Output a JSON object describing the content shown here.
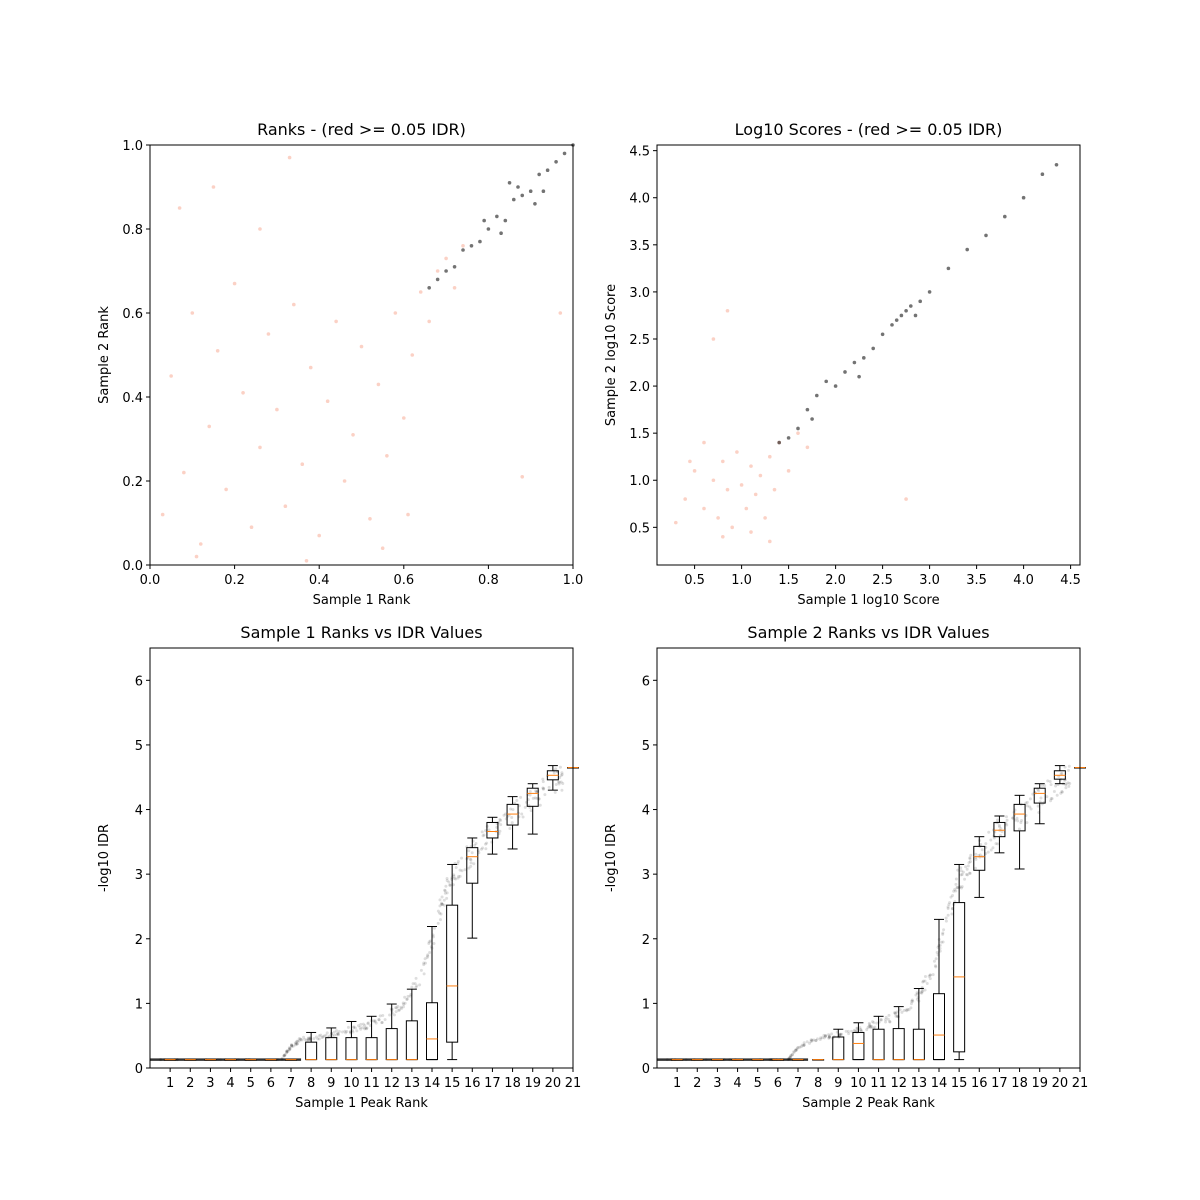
{
  "figure": {
    "background": "#ffffff",
    "colors": {
      "significant": "#000000",
      "nonsignificant": "#f47c5a",
      "median": "#ff7f0e",
      "box": "#000000",
      "axes": "#000000"
    }
  },
  "chart_data": [
    {
      "type": "scatter",
      "title": "Ranks - (red >= 0.05 IDR)",
      "xlabel": "Sample 1 Rank",
      "ylabel": "Sample 2 Rank",
      "xlim": [
        0,
        1
      ],
      "ylim": [
        0,
        1
      ],
      "xticks": [
        "0.0",
        "0.2",
        "0.4",
        "0.6",
        "0.8",
        "1.0"
      ],
      "yticks": [
        "0.0",
        "0.2",
        "0.4",
        "0.6",
        "0.8",
        "1.0"
      ],
      "series": [
        {
          "color": "#f47c5a",
          "values": [
            [
              0.03,
              0.12
            ],
            [
              0.05,
              0.45
            ],
            [
              0.08,
              0.22
            ],
            [
              0.1,
              0.6
            ],
            [
              0.12,
              0.05
            ],
            [
              0.14,
              0.33
            ],
            [
              0.16,
              0.51
            ],
            [
              0.18,
              0.18
            ],
            [
              0.2,
              0.67
            ],
            [
              0.22,
              0.41
            ],
            [
              0.24,
              0.09
            ],
            [
              0.26,
              0.28
            ],
            [
              0.28,
              0.55
            ],
            [
              0.3,
              0.37
            ],
            [
              0.32,
              0.14
            ],
            [
              0.34,
              0.62
            ],
            [
              0.36,
              0.24
            ],
            [
              0.38,
              0.47
            ],
            [
              0.4,
              0.07
            ],
            [
              0.42,
              0.39
            ],
            [
              0.44,
              0.58
            ],
            [
              0.46,
              0.2
            ],
            [
              0.48,
              0.31
            ],
            [
              0.5,
              0.52
            ],
            [
              0.52,
              0.11
            ],
            [
              0.54,
              0.43
            ],
            [
              0.56,
              0.26
            ],
            [
              0.58,
              0.6
            ],
            [
              0.6,
              0.35
            ],
            [
              0.62,
              0.5
            ],
            [
              0.64,
              0.65
            ],
            [
              0.66,
              0.58
            ],
            [
              0.68,
              0.7
            ],
            [
              0.7,
              0.73
            ],
            [
              0.72,
              0.66
            ],
            [
              0.74,
              0.76
            ],
            [
              0.07,
              0.85
            ],
            [
              0.15,
              0.9
            ],
            [
              0.26,
              0.8
            ],
            [
              0.33,
              0.97
            ],
            [
              0.11,
              0.02
            ],
            [
              0.37,
              0.01
            ],
            [
              0.55,
              0.04
            ],
            [
              0.61,
              0.12
            ],
            [
              0.88,
              0.21
            ],
            [
              0.97,
              0.6
            ]
          ]
        },
        {
          "color": "#000000",
          "values": [
            [
              0.66,
              0.66
            ],
            [
              0.68,
              0.68
            ],
            [
              0.7,
              0.7
            ],
            [
              0.72,
              0.71
            ],
            [
              0.74,
              0.75
            ],
            [
              0.76,
              0.76
            ],
            [
              0.78,
              0.77
            ],
            [
              0.8,
              0.8
            ],
            [
              0.82,
              0.83
            ],
            [
              0.84,
              0.82
            ],
            [
              0.86,
              0.87
            ],
            [
              0.88,
              0.88
            ],
            [
              0.9,
              0.89
            ],
            [
              0.92,
              0.93
            ],
            [
              0.94,
              0.94
            ],
            [
              0.96,
              0.96
            ],
            [
              0.98,
              0.98
            ],
            [
              1.0,
              1.0
            ],
            [
              0.79,
              0.82
            ],
            [
              0.83,
              0.79
            ],
            [
              0.87,
              0.9
            ],
            [
              0.91,
              0.86
            ],
            [
              0.85,
              0.91
            ],
            [
              0.93,
              0.89
            ]
          ]
        }
      ]
    },
    {
      "type": "scatter",
      "title": "Log10 Scores - (red >= 0.05 IDR)",
      "xlabel": "Sample 1 log10 Score",
      "ylabel": "Sample 2 log10 Score",
      "xlim": [
        0.1,
        4.6
      ],
      "ylim": [
        0.1,
        4.56
      ],
      "xticks": [
        "0.5",
        "1.0",
        "1.5",
        "2.0",
        "2.5",
        "3.0",
        "3.5",
        "4.0",
        "4.5"
      ],
      "yticks": [
        "0.5",
        "1.0",
        "1.5",
        "2.0",
        "2.5",
        "3.0",
        "3.5",
        "4.0",
        "4.5"
      ],
      "series": [
        {
          "color": "#f47c5a",
          "values": [
            [
              0.4,
              0.8
            ],
            [
              0.5,
              1.1
            ],
            [
              0.6,
              0.7
            ],
            [
              0.7,
              1.0
            ],
            [
              0.75,
              0.6
            ],
            [
              0.8,
              1.2
            ],
            [
              0.85,
              0.9
            ],
            [
              0.9,
              0.5
            ],
            [
              0.95,
              1.3
            ],
            [
              1.0,
              0.95
            ],
            [
              1.05,
              0.7
            ],
            [
              1.1,
              1.15
            ],
            [
              1.15,
              0.85
            ],
            [
              1.2,
              1.05
            ],
            [
              1.25,
              0.6
            ],
            [
              1.3,
              1.25
            ],
            [
              1.35,
              0.9
            ],
            [
              1.4,
              1.4
            ],
            [
              1.5,
              1.1
            ],
            [
              1.6,
              1.5
            ],
            [
              0.6,
              1.4
            ],
            [
              0.8,
              0.4
            ],
            [
              1.1,
              0.45
            ],
            [
              0.45,
              1.2
            ],
            [
              0.7,
              2.5
            ],
            [
              0.85,
              2.8
            ],
            [
              1.7,
              1.35
            ],
            [
              2.75,
              0.8
            ],
            [
              0.3,
              0.55
            ],
            [
              1.3,
              0.35
            ]
          ]
        },
        {
          "color": "#000000",
          "values": [
            [
              1.4,
              1.4
            ],
            [
              1.5,
              1.45
            ],
            [
              1.6,
              1.55
            ],
            [
              1.7,
              1.75
            ],
            [
              1.8,
              1.9
            ],
            [
              1.9,
              2.05
            ],
            [
              2.0,
              2.0
            ],
            [
              2.1,
              2.15
            ],
            [
              2.2,
              2.25
            ],
            [
              2.3,
              2.3
            ],
            [
              2.4,
              2.4
            ],
            [
              2.5,
              2.55
            ],
            [
              2.6,
              2.65
            ],
            [
              2.7,
              2.75
            ],
            [
              2.75,
              2.8
            ],
            [
              2.8,
              2.85
            ],
            [
              2.9,
              2.9
            ],
            [
              3.0,
              3.0
            ],
            [
              3.2,
              3.25
            ],
            [
              3.4,
              3.45
            ],
            [
              3.6,
              3.6
            ],
            [
              3.8,
              3.8
            ],
            [
              4.0,
              4.0
            ],
            [
              4.2,
              4.25
            ],
            [
              4.35,
              4.35
            ],
            [
              2.65,
              2.7
            ],
            [
              2.85,
              2.75
            ],
            [
              1.75,
              1.65
            ],
            [
              2.25,
              2.1
            ]
          ]
        }
      ]
    },
    {
      "type": "box",
      "title": "Sample 1 Ranks vs IDR Values",
      "xlabel": "Sample 1 Peak Rank",
      "ylabel": "-log10 IDR",
      "categories": [
        "1",
        "2",
        "3",
        "4",
        "5",
        "6",
        "7",
        "8",
        "9",
        "10",
        "11",
        "12",
        "13",
        "14",
        "15",
        "16",
        "17",
        "18",
        "19",
        "20",
        "21"
      ],
      "yticks": [
        "0",
        "1",
        "2",
        "3",
        "4",
        "5",
        "6"
      ],
      "ylim": [
        0,
        6.5
      ],
      "boxes": [
        {
          "lo": 0.13,
          "q1": 0.13,
          "med": 0.13,
          "q3": 0.13,
          "hi": 0.13
        },
        {
          "lo": 0.13,
          "q1": 0.13,
          "med": 0.13,
          "q3": 0.13,
          "hi": 0.13
        },
        {
          "lo": 0.13,
          "q1": 0.13,
          "med": 0.13,
          "q3": 0.13,
          "hi": 0.13
        },
        {
          "lo": 0.13,
          "q1": 0.13,
          "med": 0.13,
          "q3": 0.13,
          "hi": 0.13
        },
        {
          "lo": 0.13,
          "q1": 0.13,
          "med": 0.13,
          "q3": 0.13,
          "hi": 0.13
        },
        {
          "lo": 0.13,
          "q1": 0.13,
          "med": 0.13,
          "q3": 0.13,
          "hi": 0.13
        },
        {
          "lo": 0.13,
          "q1": 0.13,
          "med": 0.13,
          "q3": 0.13,
          "hi": 0.13
        },
        {
          "lo": 0.13,
          "q1": 0.13,
          "med": 0.13,
          "q3": 0.4,
          "hi": 0.55
        },
        {
          "lo": 0.13,
          "q1": 0.13,
          "med": 0.13,
          "q3": 0.47,
          "hi": 0.62
        },
        {
          "lo": 0.13,
          "q1": 0.13,
          "med": 0.13,
          "q3": 0.47,
          "hi": 0.72
        },
        {
          "lo": 0.13,
          "q1": 0.13,
          "med": 0.13,
          "q3": 0.47,
          "hi": 0.8
        },
        {
          "lo": 0.13,
          "q1": 0.13,
          "med": 0.13,
          "q3": 0.61,
          "hi": 0.99
        },
        {
          "lo": 0.13,
          "q1": 0.13,
          "med": 0.13,
          "q3": 0.73,
          "hi": 1.22
        },
        {
          "lo": 0.13,
          "q1": 0.13,
          "med": 0.45,
          "q3": 1.01,
          "hi": 2.19
        },
        {
          "lo": 0.13,
          "q1": 0.4,
          "med": 1.27,
          "q3": 2.52,
          "hi": 3.15
        },
        {
          "lo": 2.01,
          "q1": 2.86,
          "med": 3.27,
          "q3": 3.41,
          "hi": 3.56
        },
        {
          "lo": 3.31,
          "q1": 3.56,
          "med": 3.66,
          "q3": 3.8,
          "hi": 3.88
        },
        {
          "lo": 3.39,
          "q1": 3.76,
          "med": 3.93,
          "q3": 4.08,
          "hi": 4.2
        },
        {
          "lo": 3.62,
          "q1": 4.05,
          "med": 4.25,
          "q3": 4.33,
          "hi": 4.4
        },
        {
          "lo": 4.3,
          "q1": 4.46,
          "med": 4.53,
          "q3": 4.6,
          "hi": 4.68
        },
        {
          "lo": 4.65,
          "q1": 4.65,
          "med": 4.65,
          "q3": 4.65,
          "hi": 4.65
        }
      ],
      "trend": [
        [
          0.5,
          0.13
        ],
        [
          6.5,
          0.13
        ],
        [
          7.0,
          0.36
        ],
        [
          7.5,
          0.48
        ],
        [
          8.5,
          0.53
        ],
        [
          9.5,
          0.6
        ],
        [
          10.5,
          0.68
        ],
        [
          11.5,
          0.82
        ],
        [
          12.5,
          1.05
        ],
        [
          13.5,
          1.55
        ],
        [
          14.2,
          2.35
        ],
        [
          14.7,
          3.0
        ],
        [
          15.3,
          3.3
        ],
        [
          16.0,
          3.52
        ],
        [
          17.0,
          3.9
        ],
        [
          18.0,
          4.1
        ],
        [
          19.0,
          4.35
        ],
        [
          20.0,
          4.62
        ],
        [
          20.5,
          4.7
        ]
      ]
    },
    {
      "type": "box",
      "title": "Sample 2 Ranks vs IDR Values",
      "xlabel": "Sample 2 Peak Rank",
      "ylabel": "-log10 IDR",
      "categories": [
        "1",
        "2",
        "3",
        "4",
        "5",
        "6",
        "7",
        "8",
        "9",
        "10",
        "11",
        "12",
        "13",
        "14",
        "15",
        "16",
        "17",
        "18",
        "19",
        "20",
        "21"
      ],
      "yticks": [
        "0",
        "1",
        "2",
        "3",
        "4",
        "5",
        "6"
      ],
      "ylim": [
        0,
        6.5
      ],
      "boxes": [
        {
          "lo": 0.13,
          "q1": 0.13,
          "med": 0.13,
          "q3": 0.13,
          "hi": 0.13
        },
        {
          "lo": 0.13,
          "q1": 0.13,
          "med": 0.13,
          "q3": 0.13,
          "hi": 0.13
        },
        {
          "lo": 0.13,
          "q1": 0.13,
          "med": 0.13,
          "q3": 0.13,
          "hi": 0.13
        },
        {
          "lo": 0.13,
          "q1": 0.13,
          "med": 0.13,
          "q3": 0.13,
          "hi": 0.13
        },
        {
          "lo": 0.13,
          "q1": 0.13,
          "med": 0.13,
          "q3": 0.13,
          "hi": 0.13
        },
        {
          "lo": 0.13,
          "q1": 0.13,
          "med": 0.13,
          "q3": 0.13,
          "hi": 0.13
        },
        {
          "lo": 0.13,
          "q1": 0.13,
          "med": 0.13,
          "q3": 0.13,
          "hi": 0.13
        },
        {
          "lo": 0.13,
          "q1": 0.13,
          "med": 0.13,
          "q3": 0.13,
          "hi": 0.13
        },
        {
          "lo": 0.13,
          "q1": 0.13,
          "med": 0.13,
          "q3": 0.48,
          "hi": 0.6
        },
        {
          "lo": 0.13,
          "q1": 0.13,
          "med": 0.38,
          "q3": 0.55,
          "hi": 0.7
        },
        {
          "lo": 0.13,
          "q1": 0.13,
          "med": 0.13,
          "q3": 0.6,
          "hi": 0.8
        },
        {
          "lo": 0.13,
          "q1": 0.13,
          "med": 0.13,
          "q3": 0.61,
          "hi": 0.95
        },
        {
          "lo": 0.13,
          "q1": 0.13,
          "med": 0.13,
          "q3": 0.6,
          "hi": 1.23
        },
        {
          "lo": 0.13,
          "q1": 0.13,
          "med": 0.51,
          "q3": 1.15,
          "hi": 2.3
        },
        {
          "lo": 0.13,
          "q1": 0.25,
          "med": 1.41,
          "q3": 2.56,
          "hi": 3.15
        },
        {
          "lo": 2.64,
          "q1": 3.06,
          "med": 3.27,
          "q3": 3.43,
          "hi": 3.58
        },
        {
          "lo": 3.33,
          "q1": 3.58,
          "med": 3.68,
          "q3": 3.8,
          "hi": 3.9
        },
        {
          "lo": 3.08,
          "q1": 3.67,
          "med": 3.93,
          "q3": 4.08,
          "hi": 4.22
        },
        {
          "lo": 3.78,
          "q1": 4.1,
          "med": 4.25,
          "q3": 4.33,
          "hi": 4.4
        },
        {
          "lo": 4.4,
          "q1": 4.47,
          "med": 4.53,
          "q3": 4.6,
          "hi": 4.68
        },
        {
          "lo": 4.65,
          "q1": 4.65,
          "med": 4.65,
          "q3": 4.65,
          "hi": 4.65
        }
      ],
      "trend": [
        [
          0.5,
          0.13
        ],
        [
          6.5,
          0.13
        ],
        [
          7.0,
          0.36
        ],
        [
          8.0,
          0.5
        ],
        [
          9.0,
          0.56
        ],
        [
          10.0,
          0.65
        ],
        [
          11.0,
          0.75
        ],
        [
          12.0,
          0.9
        ],
        [
          13.0,
          1.2
        ],
        [
          13.8,
          1.75
        ],
        [
          14.4,
          2.5
        ],
        [
          14.9,
          3.05
        ],
        [
          15.5,
          3.35
        ],
        [
          16.2,
          3.6
        ],
        [
          17.0,
          3.9
        ],
        [
          18.0,
          4.1
        ],
        [
          19.0,
          4.35
        ],
        [
          20.0,
          4.62
        ],
        [
          20.5,
          4.7
        ]
      ]
    }
  ]
}
